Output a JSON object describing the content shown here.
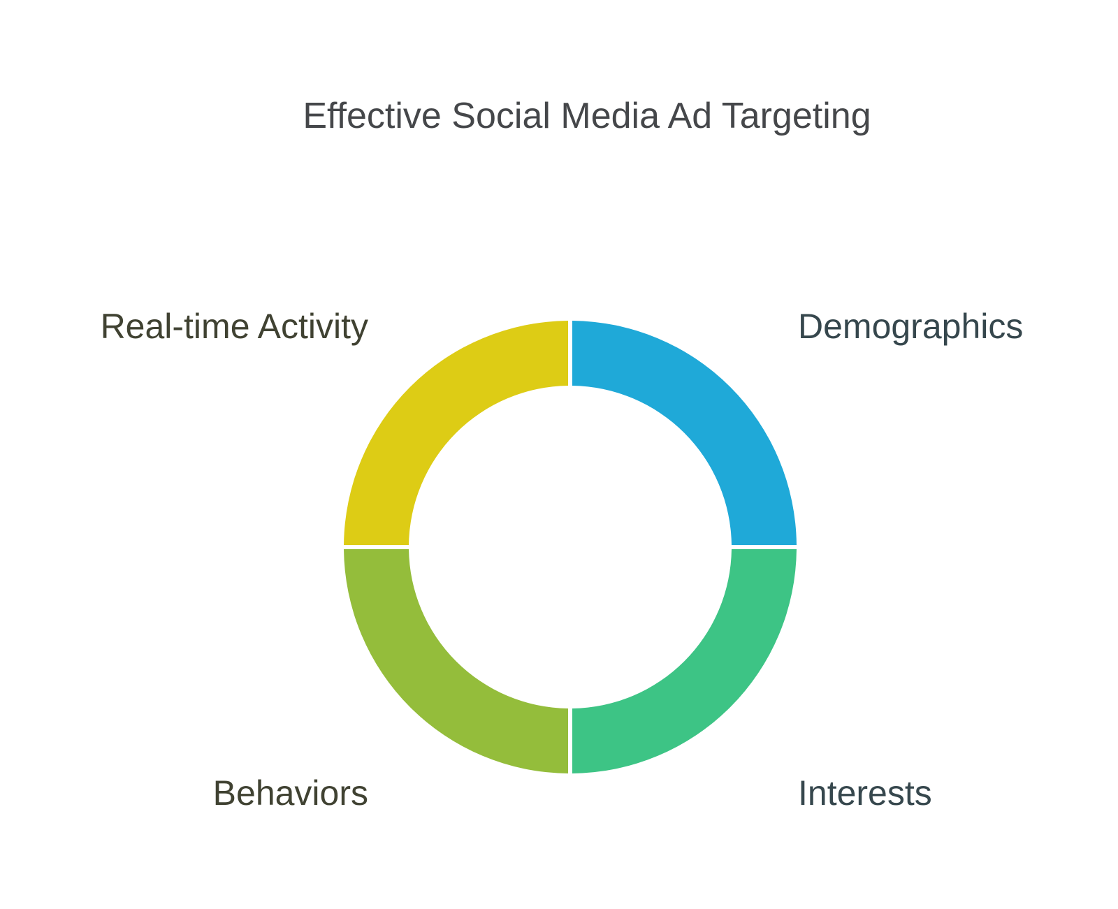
{
  "title": "Effective Social Media Ad Targeting",
  "segments": [
    {
      "id": "demographics",
      "label": "Demographics",
      "color": "#1FA9D8",
      "quadrant": "top-right"
    },
    {
      "id": "interests",
      "label": "Interests",
      "color": "#3DC485",
      "quadrant": "bottom-right"
    },
    {
      "id": "behaviors",
      "label": "Behaviors",
      "color": "#94BD3B",
      "quadrant": "bottom-left"
    },
    {
      "id": "realtime",
      "label": "Real-time Activity",
      "color": "#DDCC15",
      "quadrant": "top-left"
    }
  ]
}
